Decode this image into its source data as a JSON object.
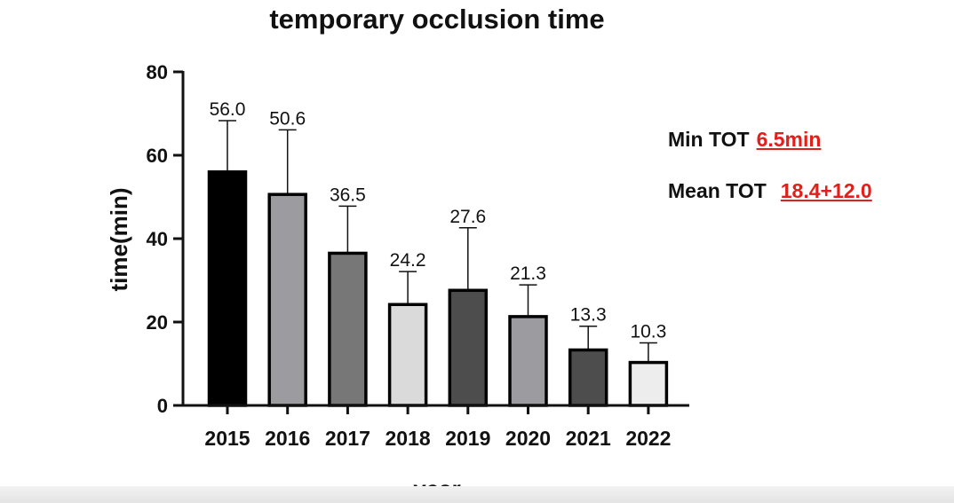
{
  "chart_data": {
    "type": "bar",
    "title": "temporary occlusion time",
    "xlabel": "year",
    "ylabel": "time(min)",
    "ylim": [
      0,
      80
    ],
    "yticks": [
      0,
      20,
      40,
      60,
      80
    ],
    "categories": [
      "2015",
      "2016",
      "2017",
      "2018",
      "2019",
      "2020",
      "2021",
      "2022"
    ],
    "values": [
      56.0,
      50.6,
      36.5,
      24.2,
      27.6,
      21.3,
      13.3,
      10.3
    ],
    "value_labels": [
      "56.0",
      "50.6",
      "36.5",
      "24.2",
      "27.6",
      "21.3",
      "13.3",
      "10.3"
    ],
    "error_upper": [
      68.3,
      66.1,
      47.8,
      32.1,
      42.6,
      28.9,
      19.0,
      15.0
    ],
    "bar_colors": [
      "#000000",
      "#9b9ba0",
      "#777777",
      "#dadada",
      "#4d4d4d",
      "#9b9ba0",
      "#4d4d4d",
      "#ededed"
    ],
    "grid": false,
    "legend": "none"
  },
  "stats": {
    "min_label": "Min TOT",
    "min_value": "6.5min",
    "mean_label": "Mean TOT",
    "mean_value": "18.4+12.0"
  }
}
